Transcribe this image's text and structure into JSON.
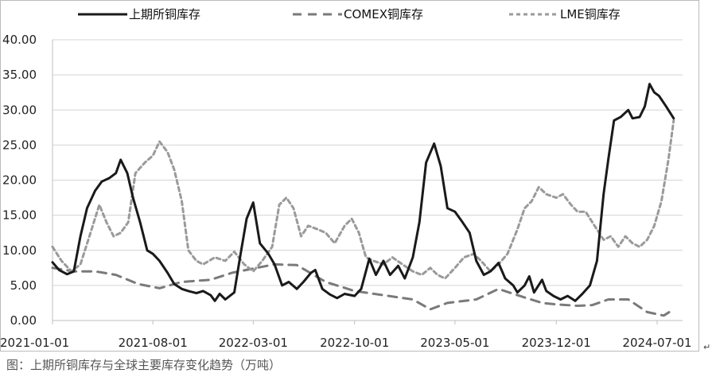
{
  "chart_data": {
    "type": "line",
    "title": "",
    "xlabel": "",
    "ylabel": "",
    "ylim": [
      0,
      40
    ],
    "yticks": [
      "0.00",
      "5.00",
      "10.00",
      "15.00",
      "20.00",
      "25.00",
      "30.00",
      "35.00",
      "40.00"
    ],
    "xticks": [
      "2021-01-01",
      "2021-08-01",
      "2022-03-01",
      "2022-10-01",
      "2023-05-01",
      "2023-12-01",
      "2024-07-01"
    ],
    "grid": "horizontal",
    "legend_position": "top",
    "series": [
      {
        "name": "上期所铜库存",
        "style": "solid",
        "color": "#1a1a1a",
        "points": [
          [
            "2021-01-01",
            8.3
          ],
          [
            "2021-01-15",
            7.2
          ],
          [
            "2021-02-01",
            6.6
          ],
          [
            "2021-02-15",
            7.0
          ],
          [
            "2021-03-01",
            12.0
          ],
          [
            "2021-03-15",
            16.0
          ],
          [
            "2021-04-01",
            18.5
          ],
          [
            "2021-04-15",
            19.8
          ],
          [
            "2021-05-01",
            20.3
          ],
          [
            "2021-05-15",
            21.0
          ],
          [
            "2021-05-25",
            22.9
          ],
          [
            "2021-06-08",
            21.0
          ],
          [
            "2021-06-20",
            17.5
          ],
          [
            "2021-07-05",
            14.0
          ],
          [
            "2021-07-20",
            10.0
          ],
          [
            "2021-08-01",
            9.5
          ],
          [
            "2021-08-15",
            8.5
          ],
          [
            "2021-09-01",
            6.8
          ],
          [
            "2021-09-15",
            5.2
          ],
          [
            "2021-10-01",
            4.5
          ],
          [
            "2021-10-15",
            4.2
          ],
          [
            "2021-11-01",
            3.9
          ],
          [
            "2021-11-15",
            4.2
          ],
          [
            "2021-12-01",
            3.6
          ],
          [
            "2021-12-10",
            2.8
          ],
          [
            "2021-12-20",
            3.8
          ],
          [
            "2022-01-01",
            3.0
          ],
          [
            "2022-01-20",
            4.0
          ],
          [
            "2022-02-01",
            9.0
          ],
          [
            "2022-02-15",
            14.5
          ],
          [
            "2022-03-01",
            16.8
          ],
          [
            "2022-03-15",
            11.0
          ],
          [
            "2022-04-01",
            9.6
          ],
          [
            "2022-04-15",
            8.0
          ],
          [
            "2022-05-01",
            5.0
          ],
          [
            "2022-05-15",
            5.5
          ],
          [
            "2022-06-01",
            4.5
          ],
          [
            "2022-06-15",
            5.5
          ],
          [
            "2022-07-01",
            6.8
          ],
          [
            "2022-07-10",
            7.2
          ],
          [
            "2022-07-25",
            4.5
          ],
          [
            "2022-08-10",
            3.7
          ],
          [
            "2022-08-25",
            3.2
          ],
          [
            "2022-09-10",
            3.8
          ],
          [
            "2022-10-01",
            3.5
          ],
          [
            "2022-10-15",
            4.5
          ],
          [
            "2022-11-01",
            8.8
          ],
          [
            "2022-11-15",
            6.5
          ],
          [
            "2022-12-01",
            8.5
          ],
          [
            "2022-12-15",
            6.5
          ],
          [
            "2023-01-01",
            7.8
          ],
          [
            "2023-01-15",
            6.0
          ],
          [
            "2023-02-01",
            9.0
          ],
          [
            "2023-02-15",
            14.0
          ],
          [
            "2023-03-01",
            22.5
          ],
          [
            "2023-03-18",
            25.2
          ],
          [
            "2023-04-01",
            22.0
          ],
          [
            "2023-04-15",
            16.0
          ],
          [
            "2023-05-01",
            15.5
          ],
          [
            "2023-05-15",
            14.2
          ],
          [
            "2023-06-01",
            12.5
          ],
          [
            "2023-06-15",
            8.5
          ],
          [
            "2023-07-01",
            6.5
          ],
          [
            "2023-07-15",
            7.0
          ],
          [
            "2023-08-01",
            8.2
          ],
          [
            "2023-08-15",
            6.0
          ],
          [
            "2023-09-01",
            5.0
          ],
          [
            "2023-09-10",
            4.0
          ],
          [
            "2023-09-25",
            5.0
          ],
          [
            "2023-10-05",
            6.3
          ],
          [
            "2023-10-15",
            4.0
          ],
          [
            "2023-11-01",
            5.8
          ],
          [
            "2023-11-10",
            4.2
          ],
          [
            "2023-11-25",
            3.5
          ],
          [
            "2023-12-10",
            3.0
          ],
          [
            "2023-12-25",
            3.5
          ],
          [
            "2024-01-10",
            2.8
          ],
          [
            "2024-01-25",
            3.8
          ],
          [
            "2024-02-10",
            5.0
          ],
          [
            "2024-02-25",
            8.5
          ],
          [
            "2024-03-10",
            18.0
          ],
          [
            "2024-03-20",
            23.0
          ],
          [
            "2024-04-01",
            28.5
          ],
          [
            "2024-04-15",
            29.0
          ],
          [
            "2024-05-01",
            30.0
          ],
          [
            "2024-05-10",
            28.8
          ],
          [
            "2024-05-25",
            29.0
          ],
          [
            "2024-06-05",
            30.5
          ],
          [
            "2024-06-15",
            33.7
          ],
          [
            "2024-06-25",
            32.5
          ],
          [
            "2024-07-05",
            32.0
          ],
          [
            "2024-07-20",
            30.5
          ],
          [
            "2024-08-05",
            28.8
          ]
        ]
      },
      {
        "name": "COMEX铜库存",
        "style": "dashed",
        "color": "#7a7a7a",
        "points": [
          [
            "2021-01-01",
            7.5
          ],
          [
            "2021-02-15",
            7.0
          ],
          [
            "2021-04-01",
            7.0
          ],
          [
            "2021-05-15",
            6.5
          ],
          [
            "2021-07-01",
            5.2
          ],
          [
            "2021-08-15",
            4.6
          ],
          [
            "2021-10-01",
            5.5
          ],
          [
            "2021-12-01",
            5.8
          ],
          [
            "2022-01-15",
            6.8
          ],
          [
            "2022-03-01",
            7.4
          ],
          [
            "2022-04-15",
            8.0
          ],
          [
            "2022-06-01",
            7.9
          ],
          [
            "2022-08-01",
            5.5
          ],
          [
            "2022-10-01",
            4.2
          ],
          [
            "2022-12-01",
            3.6
          ],
          [
            "2023-02-01",
            3.0
          ],
          [
            "2023-03-10",
            1.6
          ],
          [
            "2023-04-15",
            2.5
          ],
          [
            "2023-06-15",
            3.0
          ],
          [
            "2023-08-01",
            4.5
          ],
          [
            "2023-09-15",
            3.5
          ],
          [
            "2023-11-01",
            2.5
          ],
          [
            "2023-12-01",
            2.3
          ],
          [
            "2024-01-15",
            2.1
          ],
          [
            "2024-02-15",
            2.2
          ],
          [
            "2024-03-20",
            3.0
          ],
          [
            "2024-05-01",
            3.0
          ],
          [
            "2024-06-10",
            1.2
          ],
          [
            "2024-07-15",
            0.7
          ],
          [
            "2024-08-05",
            1.6
          ]
        ]
      },
      {
        "name": "LME铜库存",
        "style": "dotted",
        "color": "#9a9a9a",
        "points": [
          [
            "2021-01-01",
            10.5
          ],
          [
            "2021-01-20",
            8.5
          ],
          [
            "2021-02-10",
            7.0
          ],
          [
            "2021-03-01",
            8.0
          ],
          [
            "2021-03-20",
            12.0
          ],
          [
            "2021-04-10",
            16.5
          ],
          [
            "2021-04-25",
            14.0
          ],
          [
            "2021-05-10",
            12.0
          ],
          [
            "2021-05-25",
            12.5
          ],
          [
            "2021-06-10",
            14.0
          ],
          [
            "2021-06-25",
            21.0
          ],
          [
            "2021-07-15",
            22.5
          ],
          [
            "2021-08-01",
            23.5
          ],
          [
            "2021-08-15",
            25.5
          ],
          [
            "2021-09-01",
            24.0
          ],
          [
            "2021-09-15",
            21.5
          ],
          [
            "2021-10-01",
            17.0
          ],
          [
            "2021-10-15",
            10.0
          ],
          [
            "2021-11-01",
            8.5
          ],
          [
            "2021-11-15",
            8.0
          ],
          [
            "2021-12-10",
            9.0
          ],
          [
            "2022-01-01",
            8.5
          ],
          [
            "2022-01-20",
            9.8
          ],
          [
            "2022-02-10",
            8.0
          ],
          [
            "2022-03-01",
            7.0
          ],
          [
            "2022-03-20",
            8.5
          ],
          [
            "2022-04-10",
            10.5
          ],
          [
            "2022-04-25",
            16.5
          ],
          [
            "2022-05-10",
            17.5
          ],
          [
            "2022-05-25",
            16.0
          ],
          [
            "2022-06-10",
            12.0
          ],
          [
            "2022-06-25",
            13.5
          ],
          [
            "2022-07-15",
            13.0
          ],
          [
            "2022-08-01",
            12.5
          ],
          [
            "2022-08-20",
            11.0
          ],
          [
            "2022-09-10",
            13.5
          ],
          [
            "2022-09-25",
            14.5
          ],
          [
            "2022-10-10",
            12.5
          ],
          [
            "2022-10-25",
            9.0
          ],
          [
            "2022-11-10",
            8.5
          ],
          [
            "2022-12-01",
            8.0
          ],
          [
            "2022-12-20",
            9.0
          ],
          [
            "2023-01-10",
            8.0
          ],
          [
            "2023-02-01",
            7.0
          ],
          [
            "2023-02-20",
            6.5
          ],
          [
            "2023-03-10",
            7.5
          ],
          [
            "2023-03-25",
            6.5
          ],
          [
            "2023-04-10",
            6.0
          ],
          [
            "2023-05-01",
            7.5
          ],
          [
            "2023-05-20",
            9.0
          ],
          [
            "2023-06-10",
            9.5
          ],
          [
            "2023-06-25",
            8.5
          ],
          [
            "2023-07-15",
            7.0
          ],
          [
            "2023-08-01",
            8.0
          ],
          [
            "2023-08-20",
            9.5
          ],
          [
            "2023-09-10",
            13.0
          ],
          [
            "2023-09-25",
            16.0
          ],
          [
            "2023-10-10",
            17.0
          ],
          [
            "2023-10-25",
            19.0
          ],
          [
            "2023-11-10",
            18.0
          ],
          [
            "2023-12-01",
            17.5
          ],
          [
            "2023-12-15",
            18.0
          ],
          [
            "2024-01-01",
            16.5
          ],
          [
            "2024-01-15",
            15.5
          ],
          [
            "2024-02-01",
            15.5
          ],
          [
            "2024-02-20",
            13.5
          ],
          [
            "2024-03-10",
            11.5
          ],
          [
            "2024-03-25",
            12.0
          ],
          [
            "2024-04-10",
            10.5
          ],
          [
            "2024-04-25",
            12.0
          ],
          [
            "2024-05-10",
            11.0
          ],
          [
            "2024-05-25",
            10.5
          ],
          [
            "2024-06-10",
            11.5
          ],
          [
            "2024-06-25",
            13.5
          ],
          [
            "2024-07-10",
            17.0
          ],
          [
            "2024-07-25",
            23.0
          ],
          [
            "2024-08-05",
            28.5
          ]
        ]
      }
    ]
  },
  "caption": "图：上期所铜库存与全球主要库存变化趋势（万吨）",
  "pilcrow": "↵"
}
